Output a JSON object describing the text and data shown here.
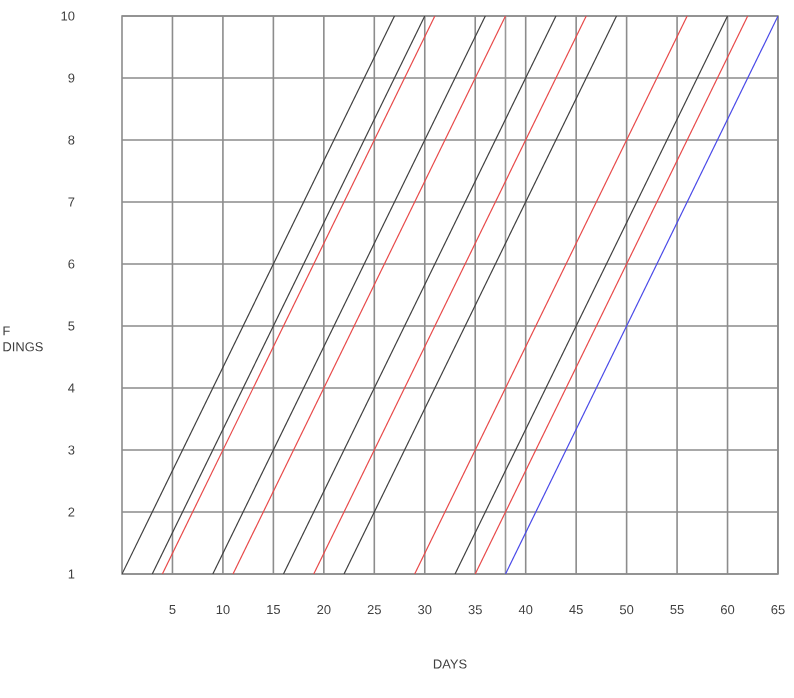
{
  "chart_data": {
    "type": "line",
    "xlabel": "DAYS",
    "ylabel": "F DINGS",
    "xlim": [
      0,
      65
    ],
    "ylim": [
      1,
      10
    ],
    "xticks": [
      5,
      10,
      15,
      20,
      25,
      30,
      35,
      40,
      45,
      50,
      55,
      60,
      65
    ],
    "yticks": [
      1,
      2,
      3,
      4,
      5,
      6,
      7,
      8,
      9,
      10
    ],
    "grid": true,
    "line_style": "solid",
    "ref_lines": [
      {
        "axis": "x",
        "value": 38,
        "color": "#999999"
      }
    ],
    "series": [
      {
        "color": "#404040",
        "x": [
          0,
          27
        ],
        "values": [
          1,
          10
        ]
      },
      {
        "color": "#404040",
        "x": [
          3,
          30
        ],
        "values": [
          1,
          10
        ]
      },
      {
        "color": "#e84a4a",
        "x": [
          4,
          31
        ],
        "values": [
          1,
          10
        ]
      },
      {
        "color": "#404040",
        "x": [
          9,
          36
        ],
        "values": [
          1,
          10
        ]
      },
      {
        "color": "#e84a4a",
        "x": [
          11,
          38
        ],
        "values": [
          1,
          10
        ]
      },
      {
        "color": "#404040",
        "x": [
          16,
          43
        ],
        "values": [
          1,
          10
        ]
      },
      {
        "color": "#e84a4a",
        "x": [
          19,
          46
        ],
        "values": [
          1,
          10
        ]
      },
      {
        "color": "#404040",
        "x": [
          22,
          49
        ],
        "values": [
          1,
          10
        ]
      },
      {
        "color": "#e84a4a",
        "x": [
          29,
          56
        ],
        "values": [
          1,
          10
        ]
      },
      {
        "color": "#404040",
        "x": [
          33,
          60
        ],
        "values": [
          1,
          10
        ]
      },
      {
        "color": "#e84a4a",
        "x": [
          35,
          62
        ],
        "values": [
          1,
          10
        ]
      },
      {
        "color": "#4a4ae8",
        "x": [
          38,
          65
        ],
        "values": [
          1,
          10
        ]
      }
    ]
  }
}
